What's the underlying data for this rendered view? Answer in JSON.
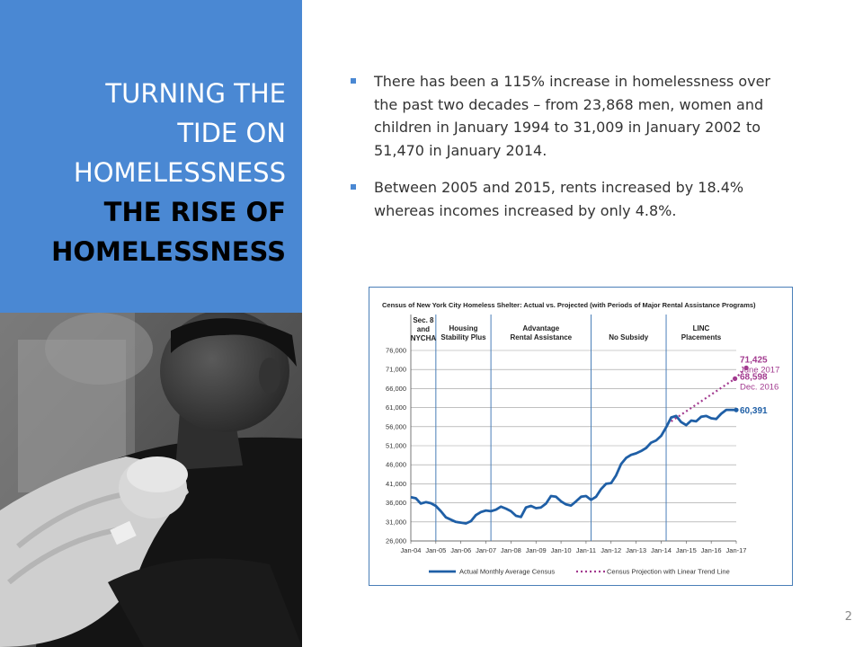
{
  "slide": {
    "title_line1": "TURNING THE",
    "title_line2": "TIDE ON",
    "title_line3": "HOMELESSNESS",
    "subtitle_line1": "THE RISE OF",
    "subtitle_line2": "HOMELESSNESS",
    "bullets": [
      "There has been a 115% increase in homelessness over the past two decades – from 23,868 men, women and children in January 1994 to 31,009 in January 2002 to 51,470 in January 2014.",
      "Between 2005 and 2015, rents increased by 18.4% whereas incomes increased by only 4.8%."
    ],
    "page_number": "2"
  },
  "chart_data": {
    "type": "line",
    "title": "Census of New York City Homeless Shelter: Actual vs. Projected (with Periods of Major Rental Assistance Programs)",
    "ylim": [
      26000,
      76000
    ],
    "yticks": [
      "26,000",
      "31,000",
      "36,000",
      "41,000",
      "46,000",
      "51,000",
      "56,000",
      "61,000",
      "66,000",
      "71,000",
      "76,000"
    ],
    "xticks": [
      "Jan-04",
      "Jan-05",
      "Jan-06",
      "Jan-07",
      "Jan-08",
      "Jan-09",
      "Jan-10",
      "Jan-11",
      "Jan-12",
      "Jan-13",
      "Jan-14",
      "Jan-15",
      "Jan-16",
      "Jan-17"
    ],
    "periods": [
      {
        "label_lines": [
          "Sec. 8",
          "and",
          "NYCHA"
        ]
      },
      {
        "label_lines": [
          "Housing",
          "Stability Plus"
        ]
      },
      {
        "label_lines": [
          "Advantage",
          "Rental Assistance"
        ]
      },
      {
        "label_lines": [
          "No Subsidy"
        ]
      },
      {
        "label_lines": [
          "LINC",
          "Placements"
        ]
      }
    ],
    "period_dividers": [
      2005.0,
      2007.2,
      2011.2,
      2014.2
    ],
    "series": [
      {
        "name": "Actual Monthly Average Census",
        "color": "#1f5fa6",
        "x": [
          2004.0,
          2004.2,
          2004.4,
          2004.6,
          2004.8,
          2005.0,
          2005.2,
          2005.4,
          2005.6,
          2005.8,
          2006.0,
          2006.2,
          2006.4,
          2006.6,
          2006.8,
          2007.0,
          2007.2,
          2007.4,
          2007.6,
          2007.8,
          2008.0,
          2008.2,
          2008.4,
          2008.6,
          2008.8,
          2009.0,
          2009.2,
          2009.4,
          2009.6,
          2009.8,
          2010.0,
          2010.2,
          2010.4,
          2010.6,
          2010.8,
          2011.0,
          2011.2,
          2011.4,
          2011.6,
          2011.8,
          2012.0,
          2012.2,
          2012.4,
          2012.6,
          2012.8,
          2013.0,
          2013.2,
          2013.4,
          2013.6,
          2013.8,
          2014.0,
          2014.2,
          2014.4,
          2014.6,
          2014.8,
          2015.0,
          2015.2,
          2015.4,
          2015.6,
          2015.8,
          2016.0,
          2016.2,
          2016.4,
          2016.6,
          2016.8,
          2017.0
        ],
        "y": [
          37500,
          37200,
          35800,
          36200,
          35900,
          35200,
          33800,
          32200,
          31600,
          31000,
          30800,
          30600,
          31200,
          32800,
          33600,
          34000,
          33800,
          34200,
          35000,
          34500,
          33800,
          32600,
          32300,
          34800,
          35200,
          34600,
          34800,
          35800,
          37800,
          37600,
          36400,
          35600,
          35300,
          36400,
          37600,
          37800,
          36800,
          37600,
          39600,
          41000,
          41200,
          43200,
          46200,
          47800,
          48600,
          49000,
          49600,
          50400,
          51800,
          52400,
          53600,
          55800,
          58400,
          58800,
          57200,
          56400,
          57600,
          57400,
          58600,
          58800,
          58200,
          58000,
          59400,
          60400,
          60400,
          60391
        ]
      },
      {
        "name": "Census Projection with Linear Trend Line",
        "color": "#a23a8f",
        "x": [
          2014.4,
          2016.95,
          2017.4
        ],
        "y": [
          57400,
          68598,
          71425
        ]
      }
    ],
    "annotations": [
      {
        "value": "71,425",
        "label": "June 2017",
        "color": "#a23a8f"
      },
      {
        "value": "68,598",
        "label": "Dec. 2016",
        "color": "#a23a8f"
      },
      {
        "value": "60,391",
        "color": "#1f5fa6"
      }
    ],
    "legend": "bottom"
  }
}
